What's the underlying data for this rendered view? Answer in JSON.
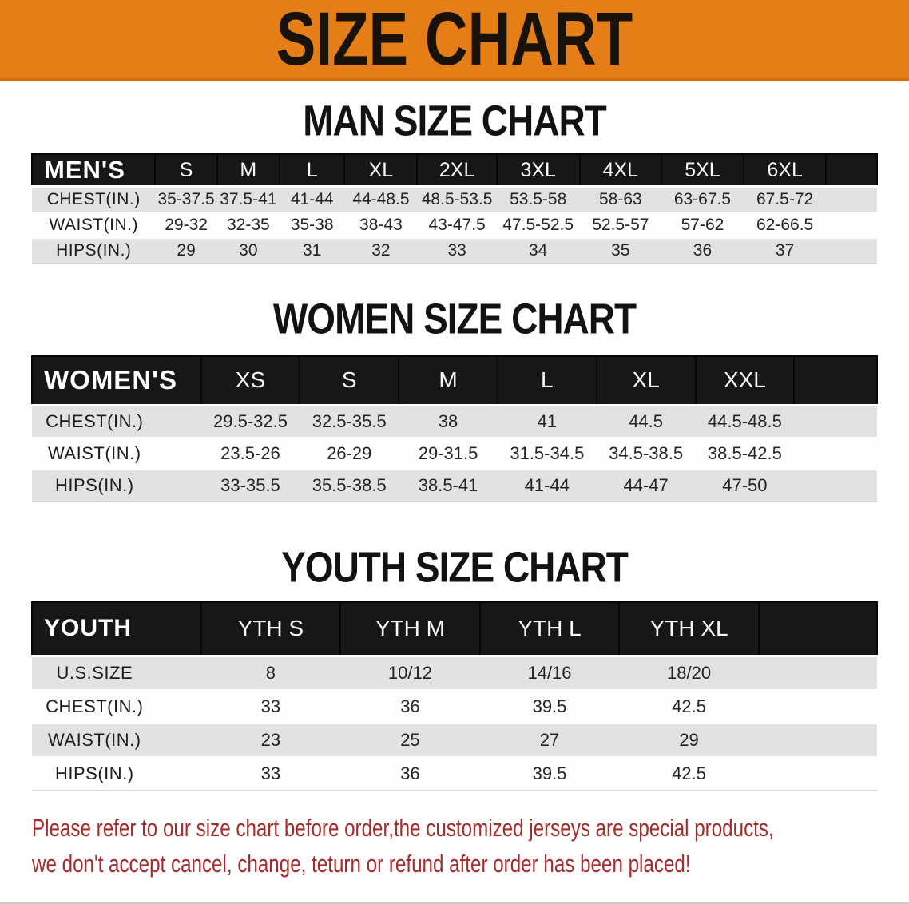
{
  "banner": {
    "title": "SIZE CHART",
    "bg_color": "#e67e17",
    "text_color": "#18120a"
  },
  "sections": [
    {
      "heading": "MAN SIZE CHART",
      "table": {
        "header_label": "MEN'S",
        "columns": [
          "S",
          "M",
          "L",
          "XL",
          "2XL",
          "3XL",
          "4XL",
          "5XL",
          "6XL"
        ],
        "rows": [
          {
            "label": "CHEST(IN.)",
            "values": [
              "35-37.5",
              "37.5-41",
              "41-44",
              "44-48.5",
              "48.5-53.5",
              "53.5-58",
              "58-63",
              "63-67.5",
              "67.5-72"
            ]
          },
          {
            "label": "WAIST(IN.)",
            "values": [
              "29-32",
              "32-35",
              "35-38",
              "38-43",
              "43-47.5",
              "47.5-52.5",
              "52.5-57",
              "57-62",
              "62-66.5"
            ]
          },
          {
            "label": "HIPS(IN.)",
            "values": [
              "29",
              "30",
              "31",
              "32",
              "33",
              "34",
              "35",
              "36",
              "37"
            ]
          }
        ]
      }
    },
    {
      "heading": "WOMEN SIZE CHART",
      "table": {
        "header_label": "WOMEN'S",
        "columns": [
          "XS",
          "S",
          "M",
          "L",
          "XL",
          "XXL"
        ],
        "rows": [
          {
            "label": "CHEST(IN.)",
            "values": [
              "29.5-32.5",
              "32.5-35.5",
              "38",
              "41",
              "44.5",
              "44.5-48.5"
            ]
          },
          {
            "label": "WAIST(IN.)",
            "values": [
              "23.5-26",
              "26-29",
              "29-31.5",
              "31.5-34.5",
              "34.5-38.5",
              "38.5-42.5"
            ]
          },
          {
            "label": "HIPS(IN.)",
            "values": [
              "33-35.5",
              "35.5-38.5",
              "38.5-41",
              "41-44",
              "44-47",
              "47-50"
            ]
          }
        ]
      }
    },
    {
      "heading": "YOUTH SIZE CHART",
      "table": {
        "header_label": "YOUTH",
        "columns": [
          "YTH S",
          "YTH M",
          "YTH L",
          "YTH XL"
        ],
        "rows": [
          {
            "label": "U.S.SIZE",
            "values": [
              "8",
              "10/12",
              "14/16",
              "18/20"
            ]
          },
          {
            "label": "CHEST(IN.)",
            "values": [
              "33",
              "36",
              "39.5",
              "42.5"
            ]
          },
          {
            "label": "WAIST(IN.)",
            "values": [
              "23",
              "25",
              "27",
              "29"
            ]
          },
          {
            "label": "HIPS(IN.)",
            "values": [
              "33",
              "36",
              "39.5",
              "42.5"
            ]
          }
        ]
      }
    }
  ],
  "disclaimer": {
    "line1": "Please refer to our size chart before order,the customized jerseys are special products,",
    "line2": "we don't accept cancel, change, teturn or refund after order has been placed!",
    "color": "#a62b2b"
  }
}
